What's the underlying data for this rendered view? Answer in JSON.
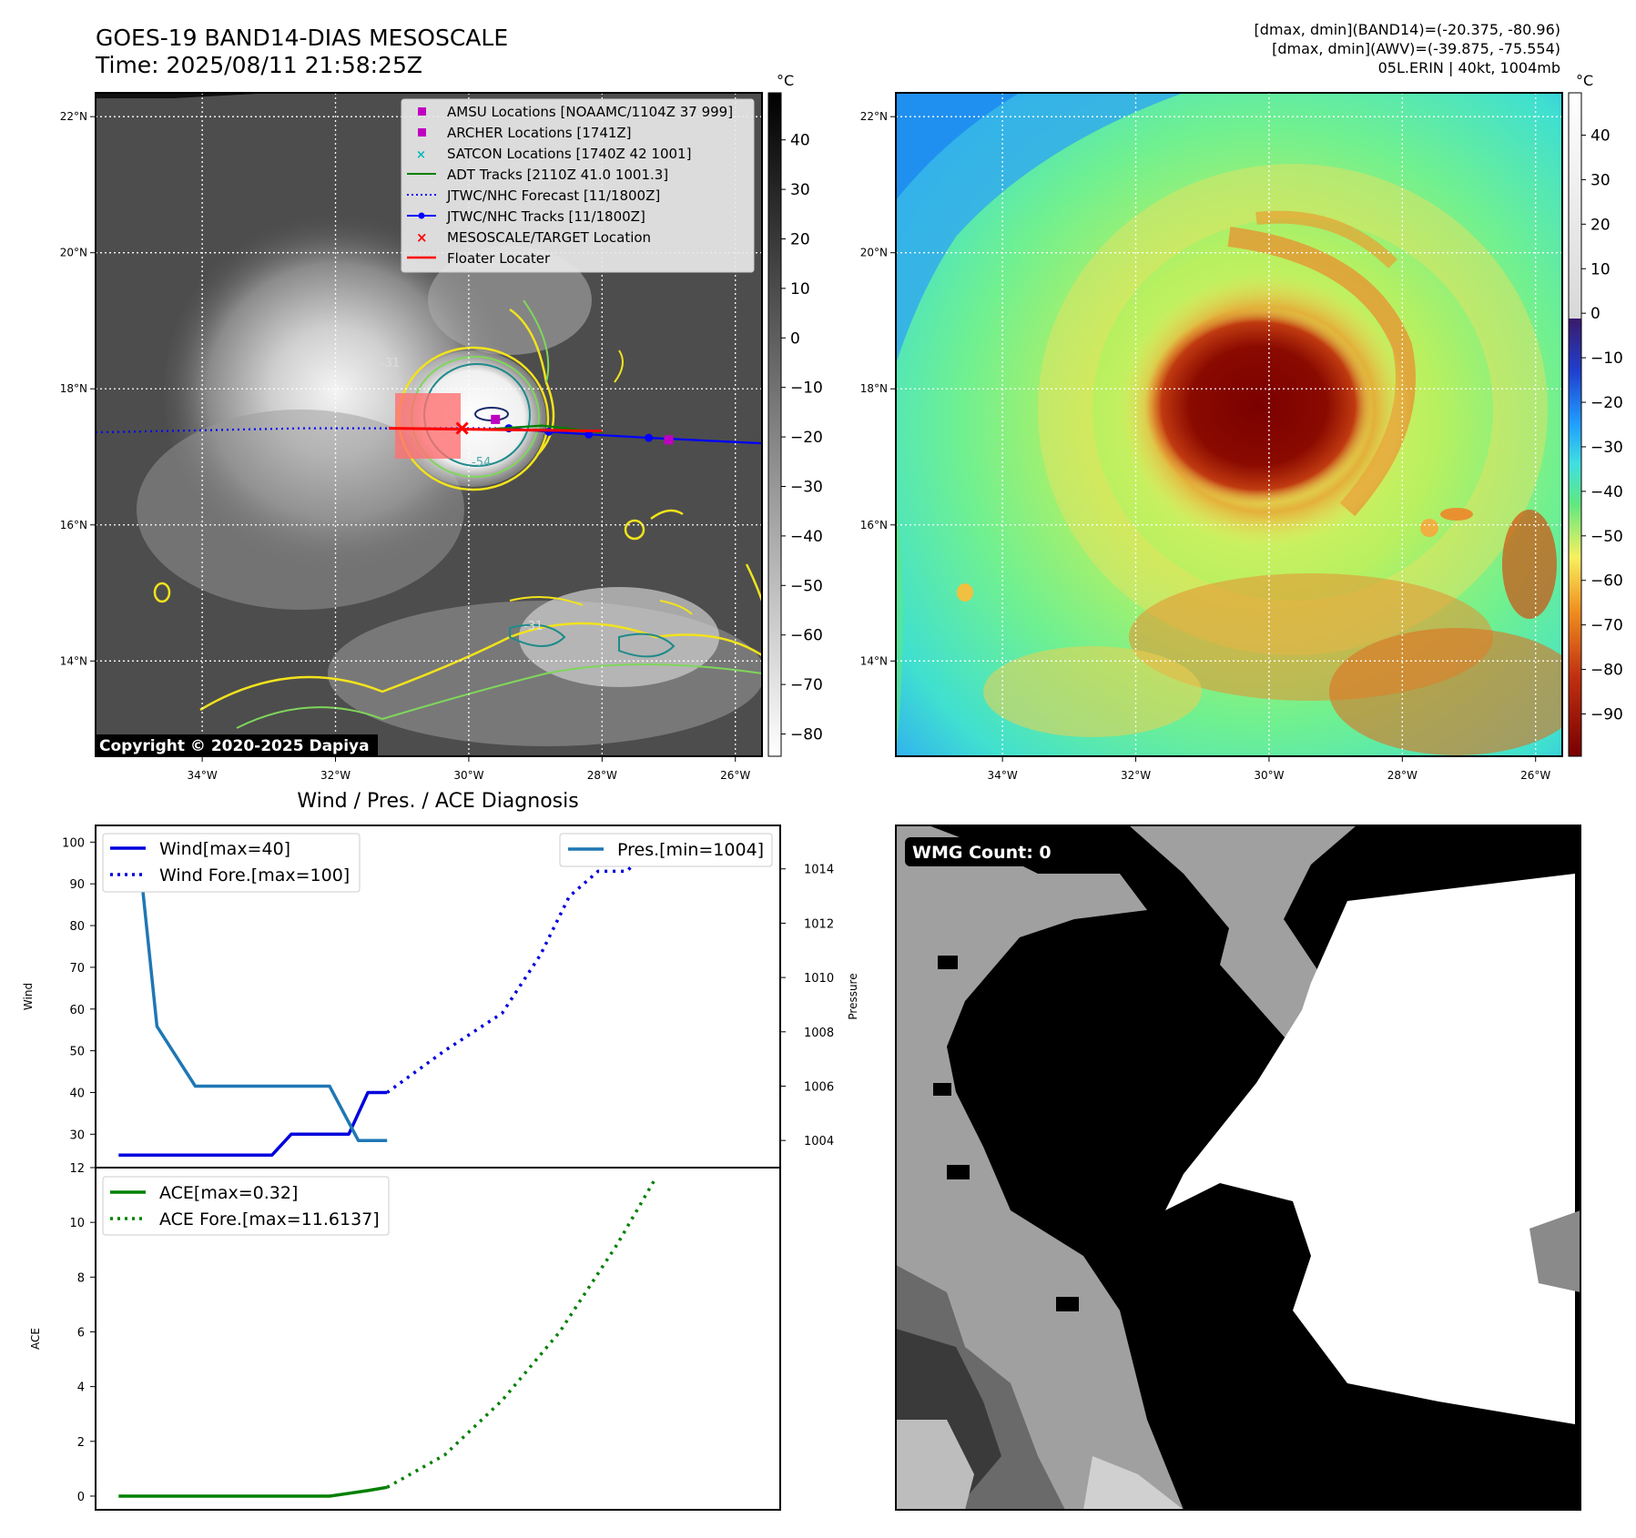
{
  "header": {
    "title": "GOES-19 BAND14-DIAS MESOSCALE",
    "time": "Time: 2025/08/11 21:58:25Z",
    "stats_band14": "[dmax, dmin](BAND14)=(-20.375, -80.96)",
    "stats_awv": "[dmax, dmin](AWV)=(-39.875, -75.554)",
    "storm": "05L.ERIN | 40kt, 1004mb"
  },
  "map": {
    "lat_ticks": [
      "22°N",
      "20°N",
      "18°N",
      "16°N",
      "14°N"
    ],
    "lon_ticks": [
      "34°W",
      "32°W",
      "30°W",
      "28°W",
      "26°W"
    ],
    "copyright": "Copyright © 2020-2025 Dapiya",
    "colorbar_unit": "°C",
    "colorbar_ticks_ir": [
      "40",
      "30",
      "20",
      "10",
      "0",
      "−10",
      "−20",
      "−30",
      "−40",
      "−50",
      "−60",
      "−70",
      "−80"
    ],
    "colorbar_ticks_awv": [
      "40",
      "30",
      "20",
      "10",
      "0",
      "−10",
      "−20",
      "−30",
      "−40",
      "−50",
      "−60",
      "−70",
      "−80",
      "−90"
    ],
    "contour_labels": [
      "-31",
      "-31",
      "-54",
      "-31"
    ],
    "legend": [
      {
        "label": "AMSU Locations [NOAAMC/1104Z 37 999]",
        "color": "#c000c0"
      },
      {
        "label": "ARCHER Locations [1741Z]",
        "color": "#c000c0"
      },
      {
        "label": "SATCON Locations [1740Z 42 1001]",
        "color": "#00b8b8"
      },
      {
        "label": "ADT Tracks [2110Z 41.0 1001.3]",
        "color": "#008000"
      },
      {
        "label": "JTWC/NHC Forecast [11/1800Z]",
        "color": "#0000ff"
      },
      {
        "label": "JTWC/NHC Tracks [11/1800Z]",
        "color": "#0000ff"
      },
      {
        "label": "MESOSCALE/TARGET Location",
        "color": "#ff0000"
      },
      {
        "label": "Floater Locater",
        "color": "#ff0000"
      }
    ],
    "forecast_track": [
      [
        -35.6,
        17.36
      ],
      [
        -32.5,
        17.42
      ],
      [
        -29.4,
        17.42
      ]
    ],
    "observed_track": [
      [
        -29.4,
        17.42
      ],
      [
        -28.8,
        17.37
      ],
      [
        -28.2,
        17.33
      ],
      [
        -27.3,
        17.28
      ],
      [
        -25.6,
        17.2
      ]
    ],
    "adt_track": [
      [
        -29.8,
        17.4
      ],
      [
        -28.9,
        17.46
      ],
      [
        -28.0,
        17.36
      ]
    ],
    "target": [
      -30.1,
      17.42
    ],
    "amsu": [
      -29.6,
      17.55
    ],
    "archer": [
      -27.0,
      17.25
    ]
  },
  "wmg": {
    "label": "WMG Count: 0"
  },
  "chart_data": [
    {
      "type": "line",
      "title": "Wind / Pres. / ACE Diagnosis",
      "ylabel": "Wind",
      "ylabel_right": "Pressure",
      "ylim": [
        22,
        104
      ],
      "ylim_right": [
        1003.0,
        1015.6
      ],
      "yticks": [
        "100",
        "90",
        "80",
        "70",
        "60",
        "50",
        "40",
        "30"
      ],
      "yticks_right": [
        "1014",
        "1012",
        "1010",
        "1008",
        "1006",
        "1004"
      ],
      "series": [
        {
          "name": "Wind[max=40]",
          "color": "#0000dd",
          "style": "solid",
          "x": [
            0,
            8,
            9,
            12,
            13,
            14
          ],
          "values": [
            25,
            25,
            30,
            30,
            40,
            40
          ]
        },
        {
          "name": "Wind Fore.[max=100]",
          "color": "#0000dd",
          "style": "dotted",
          "x": [
            14,
            17,
            20,
            22,
            23.5,
            25,
            26.5,
            28
          ],
          "values": [
            40,
            50,
            59,
            73,
            87,
            93,
            93,
            100
          ]
        },
        {
          "name": "Pres.[min=1004]",
          "color": "#1f77b4",
          "style": "solid",
          "axis": "right",
          "x": [
            0,
            1,
            2,
            4,
            5,
            11,
            12.5,
            13.5,
            14
          ],
          "values": [
            1015,
            1015,
            1008.2,
            1006,
            1006,
            1006,
            1004,
            1004,
            1004
          ]
        }
      ]
    },
    {
      "type": "line",
      "ylabel": "ACE",
      "ylim": [
        -0.5,
        12
      ],
      "yticks": [
        "12",
        "10",
        "8",
        "6",
        "4",
        "2",
        "0"
      ],
      "series": [
        {
          "name": "ACE[max=0.32]",
          "color": "#008000",
          "style": "solid",
          "x": [
            0,
            11,
            13,
            14
          ],
          "values": [
            0,
            0,
            0.2,
            0.32
          ]
        },
        {
          "name": "ACE Fore.[max=11.6137]",
          "color": "#008000",
          "style": "dotted",
          "x": [
            14,
            17,
            20,
            23,
            26,
            28
          ],
          "values": [
            0.32,
            1.5,
            3.5,
            6.0,
            9.2,
            11.6137
          ]
        }
      ]
    }
  ]
}
